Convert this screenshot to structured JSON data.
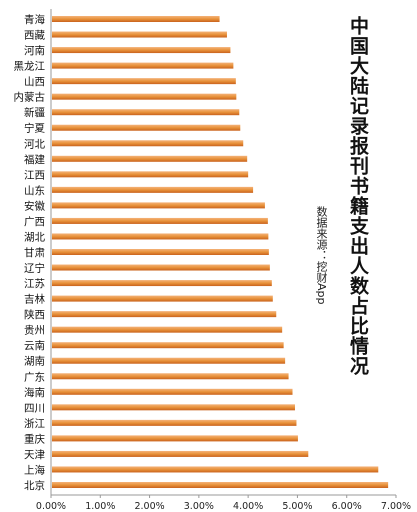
{
  "chart_data": {
    "type": "bar",
    "orientation": "horizontal",
    "title": "中国大陆记录报刊书籍支出人数占比情况",
    "source_note": "数据来源：挖财App",
    "categories": [
      "青海",
      "西藏",
      "河南",
      "黑龙江",
      "山西",
      "内蒙古",
      "新疆",
      "宁夏",
      "河北",
      "福建",
      "江西",
      "山东",
      "安徽",
      "广西",
      "湖北",
      "甘肃",
      "辽宁",
      "江苏",
      "吉林",
      "陕西",
      "贵州",
      "云南",
      "湖南",
      "广东",
      "海南",
      "四川",
      "浙江",
      "重庆",
      "天津",
      "上海",
      "北京"
    ],
    "values": [
      3.4,
      3.55,
      3.62,
      3.68,
      3.73,
      3.74,
      3.8,
      3.82,
      3.88,
      3.96,
      3.98,
      4.08,
      4.32,
      4.38,
      4.39,
      4.4,
      4.42,
      4.46,
      4.48,
      4.55,
      4.67,
      4.7,
      4.73,
      4.8,
      4.88,
      4.93,
      4.96,
      4.99,
      5.2,
      6.62,
      6.82
    ],
    "xlim": [
      0,
      7
    ],
    "xticks": [
      "0.00%",
      "1.00%",
      "2.00%",
      "3.00%",
      "4.00%",
      "5.00%",
      "6.00%",
      "7.00%"
    ],
    "bar_color": "#E8923A",
    "grid": false,
    "legend": "none"
  }
}
